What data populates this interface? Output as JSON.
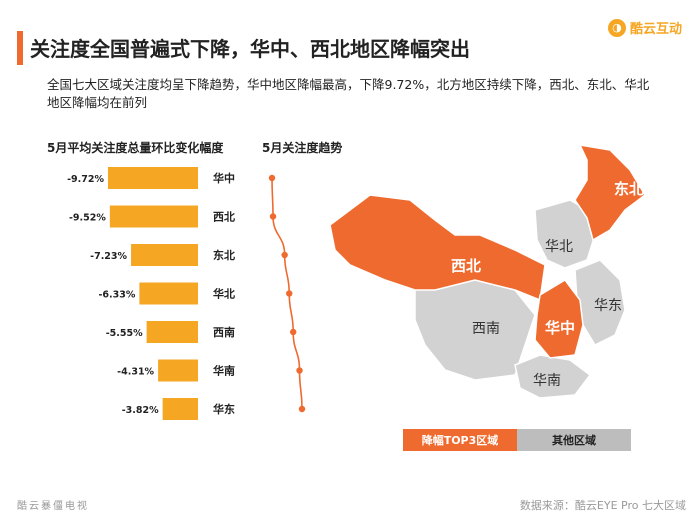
{
  "header": {
    "title": "关注度全国普遍式下降，华中、西北地区降幅突出",
    "subtitle": "全国七大区域关注度均呈下降趋势，华中地区降幅最高，下降9.72%，北方地区持续下降，西北、东北、华北地区降幅均在前列",
    "logo_text": "酷云互动",
    "logo_icon": "logo-icon"
  },
  "sections": {
    "bar_title": "5月平均关注度总量环比变化幅度",
    "trend_title": "5月关注度趋势"
  },
  "colors": {
    "accent": "#ef6a2e",
    "bar": "#f5a623",
    "trend": "#ef6a2e",
    "map_top3": "#ef6a2e",
    "map_other": "#d2d2d2"
  },
  "chart_data": {
    "type": "bar",
    "orientation": "horizontal",
    "categories": [
      "华中",
      "西北",
      "东北",
      "华北",
      "西南",
      "华南",
      "华东"
    ],
    "values": [
      -9.72,
      -9.52,
      -7.23,
      -6.33,
      -5.55,
      -4.31,
      -3.82
    ],
    "data_labels": [
      "-9.72%",
      "-9.52%",
      "-7.23%",
      "-6.33%",
      "-5.55%",
      "-4.31%",
      "-3.82%"
    ],
    "title": "5月平均关注度总量环比变化幅度",
    "grid": false
  },
  "map": {
    "labels": {
      "dongbei": "东北",
      "xibei": "西北",
      "huazhong": "华中",
      "huabei": "华北",
      "huadong": "华东",
      "xinan": "西南",
      "huanan": "华南"
    },
    "legend": {
      "top3": "降幅TOP3区域",
      "other": "其他区域"
    }
  },
  "footer": {
    "left": "酷云暴僵电视",
    "right": "数据来源：酷云EYE Pro 七大区域"
  }
}
